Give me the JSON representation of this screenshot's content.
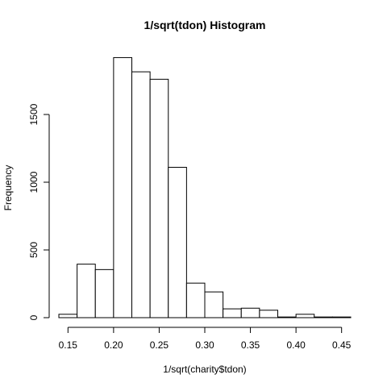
{
  "chart_data": {
    "type": "bar",
    "title": "1/sqrt(tdon) Histogram",
    "xlabel": "1/sqrt(charity$tdon)",
    "ylabel": "Frequency",
    "bin_edges": [
      0.14,
      0.16,
      0.18,
      0.2,
      0.22,
      0.24,
      0.26,
      0.28,
      0.3,
      0.32,
      0.34,
      0.36,
      0.38,
      0.4,
      0.42,
      0.44,
      0.46
    ],
    "values": [
      25,
      395,
      355,
      1920,
      1815,
      1760,
      1110,
      255,
      190,
      65,
      70,
      55,
      5,
      25,
      5,
      5
    ],
    "xlim": [
      0.14,
      0.46
    ],
    "ylim": [
      0,
      2000
    ],
    "x_ticks": [
      0.15,
      0.2,
      0.25,
      0.3,
      0.35,
      0.4,
      0.45
    ],
    "x_tick_labels": [
      "0.15",
      "0.20",
      "0.25",
      "0.30",
      "0.35",
      "0.40",
      "0.45"
    ],
    "y_ticks": [
      0,
      500,
      1000,
      1500
    ],
    "y_tick_labels": [
      "0",
      "500",
      "1000",
      "1500"
    ],
    "grid": false,
    "bar_fill": "#ffffff",
    "bar_stroke": "#000000"
  }
}
